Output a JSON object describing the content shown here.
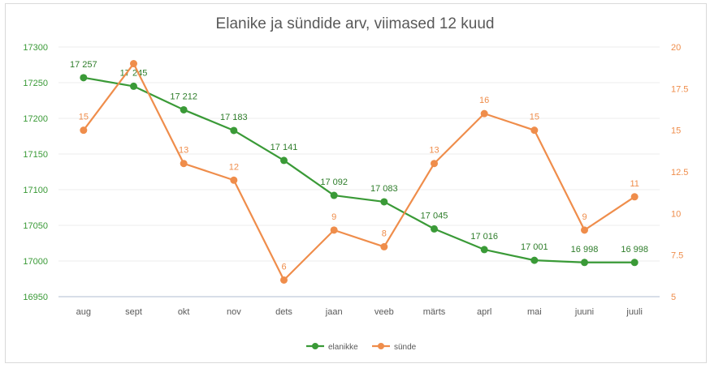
{
  "chart_data": {
    "type": "line",
    "title": "Elanike ja sündide arv, viimased 12 kuud",
    "categories": [
      "aug",
      "sept",
      "okt",
      "nov",
      "dets",
      "jaan",
      "veeb",
      "märts",
      "aprl",
      "mai",
      "juuni",
      "juuli"
    ],
    "series": [
      {
        "name": "elanikke",
        "axis": "left",
        "color": "#3a9a37",
        "values": [
          17257,
          17245,
          17212,
          17183,
          17141,
          17092,
          17083,
          17045,
          17016,
          17001,
          16998,
          16998
        ],
        "labels": [
          "17 257",
          "17 245",
          "17 212",
          "17 183",
          "17 141",
          "17 092",
          "17 083",
          "17 045",
          "17 016",
          "17 001",
          "16 998",
          "16 998"
        ]
      },
      {
        "name": "sünde",
        "axis": "right",
        "color": "#ef8d4b",
        "values": [
          15,
          19,
          13,
          12,
          6,
          9,
          8,
          13,
          16,
          15,
          9,
          11
        ],
        "labels": [
          "15",
          "",
          "13",
          "12",
          "6",
          "9",
          "8",
          "13",
          "16",
          "15",
          "9",
          "11"
        ]
      }
    ],
    "y_left": {
      "min": 16950,
      "max": 17300,
      "ticks": [
        "16950",
        "17000",
        "17050",
        "17100",
        "17150",
        "17200",
        "17250",
        "17300"
      ],
      "color": "#3a9a37"
    },
    "y_right": {
      "min": 5,
      "max": 20,
      "ticks": [
        "5",
        "7.5",
        "10",
        "12.5",
        "15",
        "17.5",
        "20"
      ],
      "color": "#ef8d4b"
    },
    "grid": true,
    "legend": "bottom"
  }
}
